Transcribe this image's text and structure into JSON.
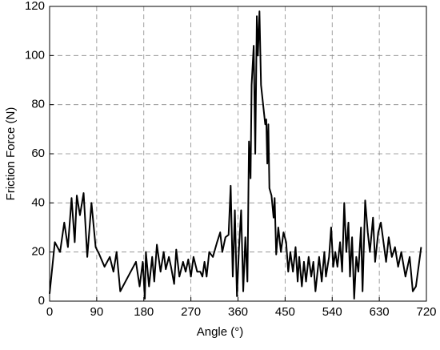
{
  "chart_data": {
    "type": "line",
    "xlabel": "Angle (°)",
    "ylabel": "Friction Force (N)",
    "xlim": [
      0,
      720
    ],
    "xticks": [
      0,
      90,
      180,
      270,
      360,
      450,
      540,
      630,
      720
    ],
    "ylim": [
      0,
      120
    ],
    "yticks": [
      0,
      20,
      40,
      60,
      80,
      100,
      120
    ],
    "grid": true,
    "series": [
      {
        "color": "#000000",
        "x": [
          0,
          10,
          20,
          28,
          35,
          42,
          48,
          52,
          58,
          65,
          72,
          80,
          88,
          95,
          105,
          115,
          122,
          128,
          135,
          150,
          165,
          172,
          178,
          182,
          184,
          190,
          196,
          200,
          205,
          212,
          218,
          222,
          228,
          232,
          238,
          242,
          248,
          255,
          260,
          265,
          270,
          275,
          282,
          288,
          292,
          296,
          300,
          305,
          312,
          320,
          326,
          330,
          336,
          342,
          346,
          350,
          354,
          358,
          362,
          366,
          370,
          374,
          378,
          381,
          384,
          386,
          390,
          393,
          396,
          398,
          401,
          404,
          408,
          412,
          414,
          416,
          418,
          420,
          424,
          428,
          430,
          433,
          437,
          442,
          447,
          452,
          456,
          460,
          465,
          470,
          474,
          477,
          482,
          486,
          490,
          495,
          500,
          504,
          508,
          515,
          520,
          525,
          528,
          534,
          538,
          542,
          546,
          550,
          555,
          559,
          563,
          567,
          571,
          574,
          578,
          582,
          586,
          590,
          595,
          598,
          603,
          608,
          612,
          618,
          622,
          628,
          633,
          638,
          643,
          648,
          654,
          660,
          666,
          672,
          680,
          688,
          694,
          700,
          710
        ],
        "values": [
          3,
          24,
          20,
          32,
          22,
          42,
          24,
          43,
          35,
          44,
          18,
          40,
          22,
          19,
          14,
          18,
          12,
          20,
          4,
          10,
          16,
          6,
          16,
          1,
          20,
          6,
          18,
          8,
          23,
          12,
          20,
          13,
          18,
          14,
          7,
          21,
          10,
          16,
          12,
          17,
          10,
          18,
          12,
          12,
          10,
          16,
          10,
          20,
          18,
          24,
          28,
          20,
          26,
          27,
          47,
          10,
          37,
          2,
          22,
          37,
          4,
          26,
          8,
          65,
          50,
          88,
          104,
          60,
          116,
          100,
          118,
          88,
          80,
          72,
          74,
          56,
          72,
          46,
          43,
          34,
          42,
          19,
          30,
          20,
          28,
          24,
          12,
          20,
          12,
          22,
          8,
          18,
          6,
          16,
          8,
          18,
          10,
          16,
          4,
          18,
          8,
          20,
          10,
          18,
          30,
          14,
          20,
          14,
          24,
          12,
          40,
          20,
          32,
          10,
          26,
          1,
          18,
          12,
          30,
          4,
          41,
          28,
          20,
          34,
          16,
          28,
          32,
          24,
          16,
          26,
          18,
          22,
          14,
          20,
          10,
          18,
          4,
          6,
          22
        ]
      }
    ]
  }
}
